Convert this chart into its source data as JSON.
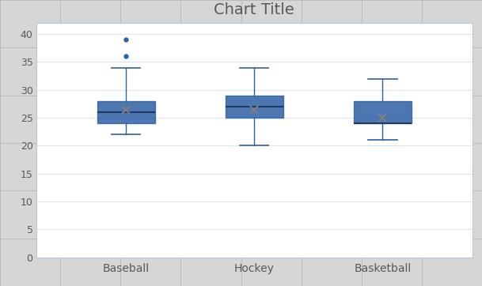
{
  "title": "Chart Title",
  "categories": [
    "Baseball",
    "Hockey",
    "Basketball"
  ],
  "box_data": {
    "Baseball": {
      "whislo": 22,
      "q1": 24,
      "med": 26,
      "q3": 28,
      "whishi": 34,
      "mean": 26.5,
      "fliers": [
        36,
        39
      ]
    },
    "Hockey": {
      "whislo": 20,
      "q1": 25,
      "med": 27,
      "q3": 29,
      "whishi": 34,
      "mean": 26.5,
      "fliers": []
    },
    "Basketball": {
      "whislo": 21,
      "q1": 24,
      "med": 24,
      "q3": 28,
      "whishi": 32,
      "mean": 25,
      "fliers": []
    }
  },
  "ylim": [
    0,
    42
  ],
  "yticks": [
    0,
    5,
    10,
    15,
    20,
    25,
    30,
    35,
    40
  ],
  "box_fill_color": "#4472c4",
  "box_edge_color": "#2e5fa3",
  "median_color": "#1f3864",
  "whisker_color": "#2e5fa3",
  "cap_color": "#2e5fa3",
  "flier_color": "#2e5fa3",
  "mean_color": "#808080",
  "chart_bg": "#ffffff",
  "outer_bg": "#d6d6d6",
  "excel_grid_color": "#c8c8c8",
  "plot_grid_color": "#dce6f1",
  "title_color": "#595959",
  "title_fontsize": 14,
  "tick_fontsize": 9,
  "label_fontsize": 10,
  "box_width": 0.45
}
